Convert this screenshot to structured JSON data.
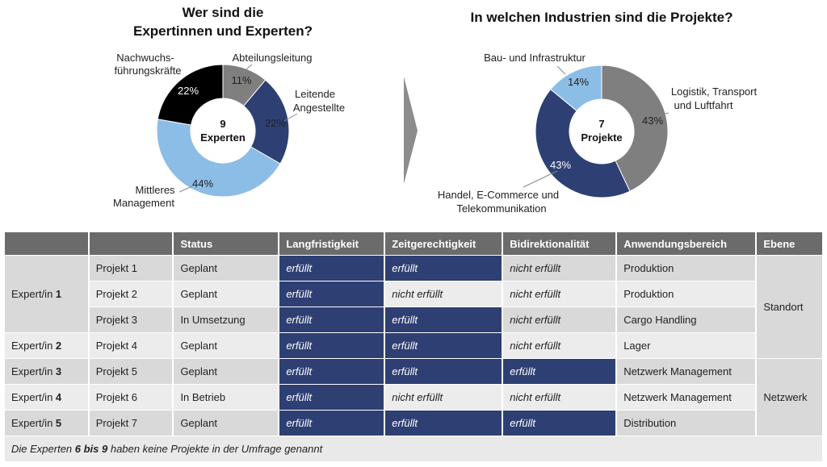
{
  "left_chart": {
    "title_line1": "Wer sind die",
    "title_line2": "Expertinnen und Experten?",
    "center_number": "9",
    "center_text": "Experten",
    "slices": [
      {
        "label": "Abteilungsleitung",
        "percent_label": "11%",
        "value": 11,
        "color": "#7f7f7f"
      },
      {
        "label_line1": "Leitende",
        "label_line2": "Angestellte",
        "percent_label": "22%",
        "value": 22,
        "color": "#2e3f73"
      },
      {
        "label_line1": "Mittleres",
        "label_line2": "Management",
        "percent_label": "44%",
        "value": 44,
        "color": "#8cbde6"
      },
      {
        "label_line1": "Nachwuchs-",
        "label_line2": "führungskräfte",
        "percent_label": "22%",
        "value": 22,
        "color": "#000000"
      }
    ]
  },
  "right_chart": {
    "title": "In welchen Industrien sind die Projekte?",
    "center_number": "7",
    "center_text": "Projekte",
    "slices": [
      {
        "label_line1": "Logistik, Transport",
        "label_line2": "und Luftfahrt",
        "percent_label": "43%",
        "value": 43,
        "color": "#7f7f7f"
      },
      {
        "label_line1": "Handel, E-Commerce und",
        "label_line2": "Telekommunikation",
        "percent_label": "43%",
        "value": 43,
        "color": "#2e3f73"
      },
      {
        "label": "Bau- und Infrastruktur",
        "percent_label": "14%",
        "value": 14,
        "color": "#8cbde6"
      }
    ]
  },
  "table": {
    "headers": [
      "",
      "",
      "Status",
      "Langfristigkeit",
      "Zeitgerechtigkeit",
      "Bidirektionalität",
      "Anwendungsbereich",
      "Ebene"
    ],
    "experts": {
      "e1_prefix": "Expert/in ",
      "e1_num": "1",
      "e2_prefix": "Expert/in ",
      "e2_num": "2",
      "e3_prefix": "Expert/in ",
      "e3_num": "3",
      "e4_prefix": "Expert/in ",
      "e4_num": "4",
      "e5_prefix": "Expert/in ",
      "e5_num": "5"
    },
    "ebene": {
      "standort": "Standort",
      "netzwerk": "Netzwerk"
    },
    "rows": [
      {
        "projekt": "Projekt 1",
        "status": "Geplant",
        "langfristigkeit": "erfüllt",
        "zeitgerechtigkeit": "erfüllt",
        "bidirektionalitaet": "nicht erfüllt",
        "anwendungsbereich": "Produktion"
      },
      {
        "projekt": "Projekt 2",
        "status": "Geplant",
        "langfristigkeit": "erfüllt",
        "zeitgerechtigkeit": "nicht erfüllt",
        "bidirektionalitaet": "nicht erfüllt",
        "anwendungsbereich": "Produktion"
      },
      {
        "projekt": "Projekt 3",
        "status": "In Umsetzung",
        "langfristigkeit": "erfüllt",
        "zeitgerechtigkeit": "erfüllt",
        "bidirektionalitaet": "nicht erfüllt",
        "anwendungsbereich": "Cargo Handling"
      },
      {
        "projekt": "Projekt 4",
        "status": "Geplant",
        "langfristigkeit": "erfüllt",
        "zeitgerechtigkeit": "erfüllt",
        "bidirektionalitaet": "nicht erfüllt",
        "anwendungsbereich": "Lager"
      },
      {
        "projekt": "Projekt 5",
        "status": "Geplant",
        "langfristigkeit": "erfüllt",
        "zeitgerechtigkeit": "erfüllt",
        "bidirektionalitaet": "erfüllt",
        "anwendungsbereich": "Netzwerk Management"
      },
      {
        "projekt": "Projekt 6",
        "status": "In Betrieb",
        "langfristigkeit": "erfüllt",
        "zeitgerechtigkeit": "nicht erfüllt",
        "bidirektionalitaet": "nicht erfüllt",
        "anwendungsbereich": "Netzwerk Management"
      },
      {
        "projekt": "Projekt 7",
        "status": "Geplant",
        "langfristigkeit": "erfüllt",
        "zeitgerechtigkeit": "erfüllt",
        "bidirektionalitaet": "erfüllt",
        "anwendungsbereich": "Distribution"
      }
    ],
    "footnote": {
      "before": "Die Experten ",
      "bold": "6 bis 9",
      "after": " haben keine Projekte in der Umfrage genannt"
    }
  }
}
